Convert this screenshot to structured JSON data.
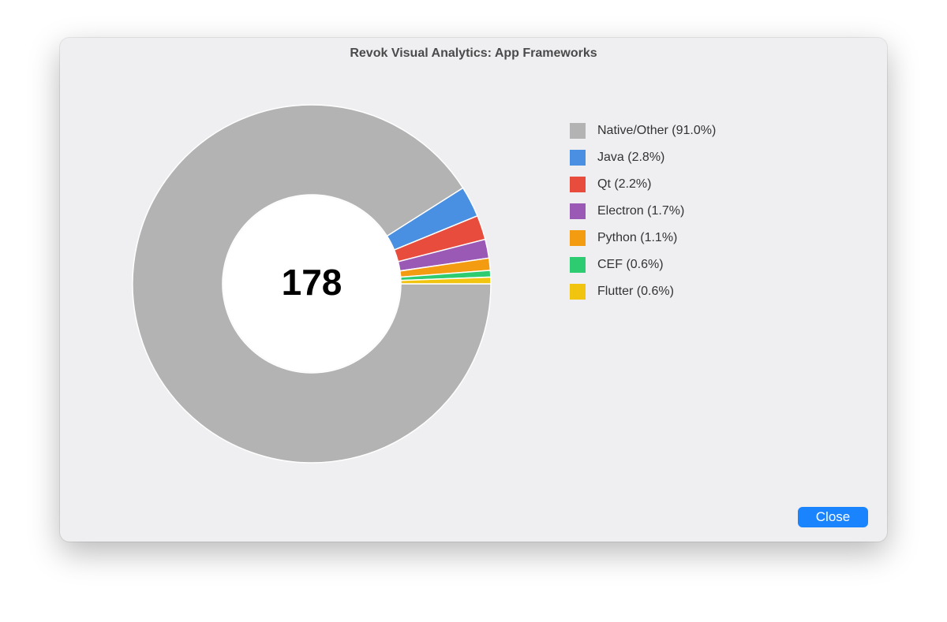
{
  "window": {
    "title": "Revok Visual Analytics: App Frameworks"
  },
  "chart_data": {
    "type": "donut",
    "total": 178,
    "categories": [
      "Native/Other (91.0%)",
      "Java (2.8%)",
      "Qt (2.2%)",
      "Electron (1.7%)",
      "Python (1.1%)",
      "CEF (0.6%)",
      "Flutter (0.6%)"
    ],
    "values": [
      91.0,
      2.8,
      2.2,
      1.7,
      1.1,
      0.6,
      0.6
    ],
    "colors": [
      "#b3b3b3",
      "#4a90e2",
      "#e74c3c",
      "#9b59b6",
      "#f39c12",
      "#2ecc71",
      "#f1c40f"
    ]
  },
  "close_button": "Close"
}
